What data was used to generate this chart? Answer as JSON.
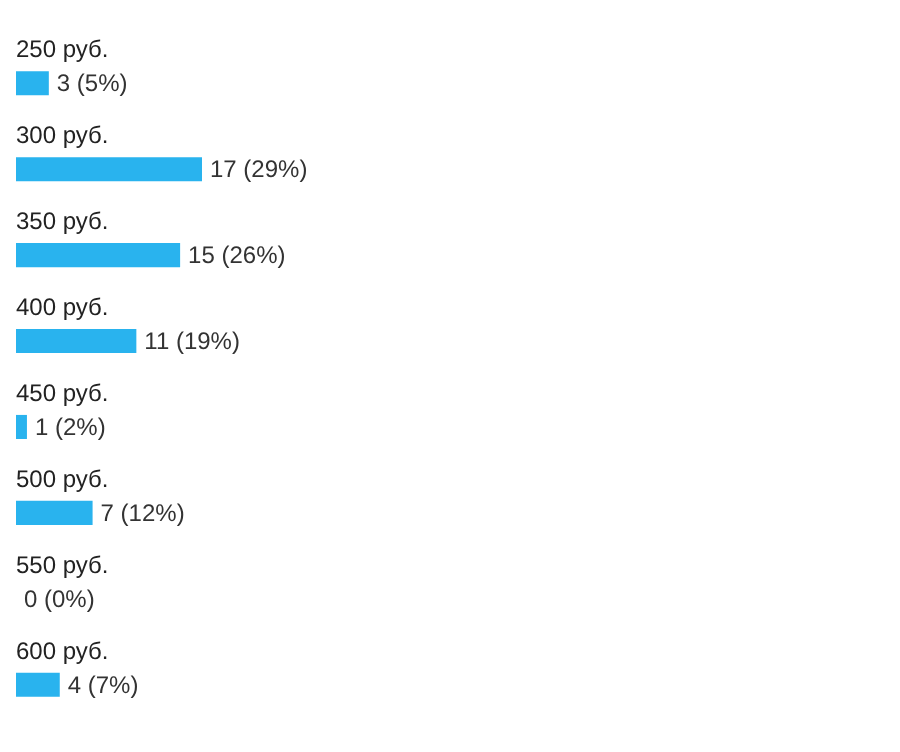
{
  "chart_data": {
    "type": "bar",
    "orientation": "horizontal",
    "categories": [
      "250 руб.",
      "300 руб.",
      "350 руб.",
      "400 руб.",
      "450 руб.",
      "500 руб.",
      "550 руб.",
      "600 руб."
    ],
    "values": [
      3,
      17,
      15,
      11,
      1,
      7,
      0,
      4
    ],
    "color": "#29b3ee",
    "value_labels": [
      "3 (5%)",
      "17 (29%)",
      "15 (26%)",
      "11 (19%)",
      "1 (2%)",
      "7 (12%)",
      "0 (0%)",
      "4 (7%)"
    ]
  }
}
